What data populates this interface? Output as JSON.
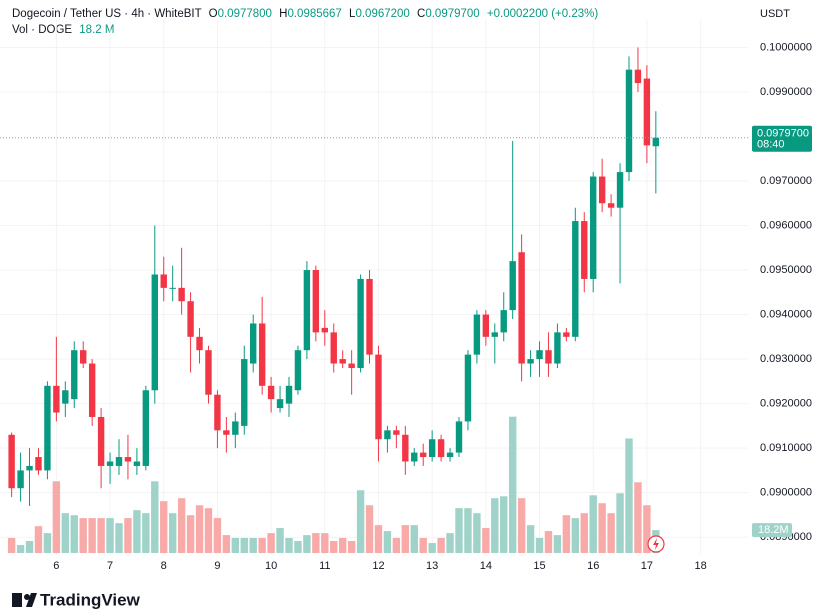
{
  "chart_data": {
    "type": "candlestick",
    "header": {
      "symbol": "Dogecoin / Tether US · 4h · WhiteBIT",
      "o_label": "O",
      "o": "0.0977800",
      "h_label": "H",
      "h": "0.0985667",
      "l_label": "L",
      "l": "0.0967200",
      "c_label": "C",
      "c": "0.0979700",
      "change": "+0.0002200 (+0.23%)",
      "vol_label": "Vol · DOGE",
      "vol": "18.2 M"
    },
    "currency": "USDT",
    "up_color": "#089981",
    "down_color": "#f23645",
    "up_volume_color": "#9fd3c9",
    "down_volume_color": "#f7aaa8",
    "grid": true,
    "xlim": [
      -1.3,
      82.3
    ],
    "xticks": [
      {
        "value": 5,
        "label": "6"
      },
      {
        "value": 11,
        "label": "7"
      },
      {
        "value": 17,
        "label": "8"
      },
      {
        "value": 23,
        "label": "9"
      },
      {
        "value": 29,
        "label": "10"
      },
      {
        "value": 35,
        "label": "11"
      },
      {
        "value": 41,
        "label": "12"
      },
      {
        "value": 47,
        "label": "13"
      },
      {
        "value": 53,
        "label": "14"
      },
      {
        "value": 59,
        "label": "15"
      },
      {
        "value": 65,
        "label": "16"
      },
      {
        "value": 71,
        "label": "17"
      },
      {
        "value": 77,
        "label": "18"
      }
    ],
    "ylim": [
      0.0886,
      0.1004
    ],
    "yticks": [
      {
        "value": 0.089,
        "label": "0.0890000"
      },
      {
        "value": 0.09,
        "label": "0.0900000"
      },
      {
        "value": 0.091,
        "label": "0.0910000"
      },
      {
        "value": 0.092,
        "label": "0.0920000"
      },
      {
        "value": 0.093,
        "label": "0.0930000"
      },
      {
        "value": 0.094,
        "label": "0.0940000"
      },
      {
        "value": 0.095,
        "label": "0.0950000"
      },
      {
        "value": 0.096,
        "label": "0.0960000"
      },
      {
        "value": 0.097,
        "label": "0.0970000"
      },
      {
        "value": 0.099,
        "label": "0.0990000"
      },
      {
        "value": 0.1,
        "label": "0.1000000"
      }
    ],
    "open": [
      0.0913,
      0.0901,
      0.0905,
      0.0908,
      0.0905,
      0.0924,
      0.092,
      0.0921,
      0.0932,
      0.0929,
      0.0917,
      0.0906,
      0.0906,
      0.0908,
      0.0906,
      0.0906,
      0.0923,
      0.0949,
      0.0946,
      0.0946,
      0.0943,
      0.0935,
      0.0932,
      0.0922,
      0.0914,
      0.0913,
      0.0915,
      0.0929,
      0.0938,
      0.0924,
      0.0919,
      0.092,
      0.0923,
      0.0932,
      0.095,
      0.0937,
      0.0936,
      0.093,
      0.0929,
      0.0928,
      0.0948,
      0.0931,
      0.0912,
      0.0914,
      0.0913,
      0.0907,
      0.0909,
      0.0908,
      0.0912,
      0.0908,
      0.0909,
      0.0916,
      0.0931,
      0.094,
      0.0935,
      0.0936,
      0.0941,
      0.0954,
      0.0929,
      0.093,
      0.0932,
      0.0929,
      0.0936,
      0.0935,
      0.0961,
      0.0948,
      0.0971,
      0.0965,
      0.0964,
      0.0972,
      0.0995,
      0.0993,
      0.09778
    ],
    "high": [
      0.09135,
      0.0909,
      0.091,
      0.091,
      0.0925,
      0.0935,
      0.0925,
      0.0934,
      0.0934,
      0.093,
      0.0919,
      0.0909,
      0.0912,
      0.0913,
      0.091,
      0.0924,
      0.096,
      0.0953,
      0.0951,
      0.0955,
      0.0945,
      0.0937,
      0.0933,
      0.0923,
      0.0917,
      0.0918,
      0.0933,
      0.094,
      0.0944,
      0.0926,
      0.0924,
      0.0926,
      0.0933,
      0.0952,
      0.0951,
      0.0941,
      0.0938,
      0.0932,
      0.0932,
      0.0949,
      0.095,
      0.0933,
      0.0915,
      0.0915,
      0.0915,
      0.091,
      0.0911,
      0.0914,
      0.0913,
      0.091,
      0.0917,
      0.0932,
      0.0941,
      0.0941,
      0.0938,
      0.0945,
      0.0979,
      0.0958,
      0.0932,
      0.0934,
      0.0936,
      0.0938,
      0.0937,
      0.0964,
      0.0963,
      0.0972,
      0.0975,
      0.0967,
      0.0974,
      0.0998,
      0.1,
      0.0996,
      0.0985667
    ],
    "low": [
      0.0899,
      0.0898,
      0.0897,
      0.0904,
      0.0903,
      0.0916,
      0.0917,
      0.0919,
      0.0928,
      0.0915,
      0.0901,
      0.0902,
      0.0904,
      0.0903,
      0.0904,
      0.0905,
      0.092,
      0.0943,
      0.0943,
      0.094,
      0.0927,
      0.0929,
      0.092,
      0.091,
      0.0909,
      0.091,
      0.0913,
      0.0927,
      0.0922,
      0.0918,
      0.0918,
      0.0917,
      0.0922,
      0.093,
      0.0934,
      0.0933,
      0.0927,
      0.0928,
      0.0922,
      0.0927,
      0.0929,
      0.0907,
      0.0909,
      0.091,
      0.0904,
      0.0906,
      0.0906,
      0.0907,
      0.0907,
      0.0907,
      0.0908,
      0.0914,
      0.0929,
      0.0933,
      0.0929,
      0.0934,
      0.0939,
      0.0925,
      0.0926,
      0.0926,
      0.0926,
      0.0928,
      0.0934,
      0.0934,
      0.0945,
      0.0945,
      0.0963,
      0.0962,
      0.0947,
      0.097,
      0.099,
      0.0974,
      0.09672
    ],
    "close": [
      0.0901,
      0.0905,
      0.0906,
      0.0905,
      0.0924,
      0.0918,
      0.0923,
      0.0932,
      0.0929,
      0.0917,
      0.0906,
      0.0907,
      0.0908,
      0.0907,
      0.0907,
      0.0923,
      0.0949,
      0.0946,
      0.0946,
      0.0943,
      0.0935,
      0.0932,
      0.0922,
      0.0914,
      0.0913,
      0.0916,
      0.093,
      0.0938,
      0.0924,
      0.0921,
      0.0921,
      0.0924,
      0.0932,
      0.095,
      0.0936,
      0.0936,
      0.0929,
      0.0929,
      0.0928,
      0.0948,
      0.0931,
      0.0912,
      0.0914,
      0.0913,
      0.0907,
      0.0909,
      0.0908,
      0.0912,
      0.0908,
      0.0909,
      0.0916,
      0.0931,
      0.094,
      0.0935,
      0.0936,
      0.0941,
      0.0952,
      0.0929,
      0.093,
      0.0932,
      0.0929,
      0.0936,
      0.0935,
      0.0961,
      0.0948,
      0.0971,
      0.0965,
      0.0964,
      0.0972,
      0.0995,
      0.0992,
      0.0978,
      0.09797
    ],
    "volume": [
      11.9,
      6.3,
      9.5,
      21.3,
      15.8,
      56.9,
      31.6,
      30.0,
      27.7,
      27.7,
      27.7,
      27.7,
      23.7,
      27.7,
      34.0,
      31.6,
      56.9,
      41.1,
      31.6,
      43.5,
      30.0,
      37.9,
      35.6,
      27.7,
      14.2,
      11.9,
      11.9,
      11.9,
      11.9,
      15.8,
      19.8,
      11.9,
      9.5,
      14.2,
      15.8,
      15.8,
      9.5,
      11.9,
      9.5,
      49.8,
      37.9,
      22.1,
      17.4,
      11.9,
      22.1,
      22.1,
      11.9,
      7.9,
      11.9,
      15.8,
      35.6,
      35.6,
      31.6,
      19.8,
      43.5,
      45.0,
      108.2,
      43.5,
      22.1,
      11.9,
      17.4,
      14.2,
      30.0,
      27.7,
      31.6,
      45.8,
      39.5,
      31.6,
      47.4,
      90.9,
      56.1,
      37.9,
      18.2
    ],
    "last_price": {
      "value": 0.09797,
      "label": "0.0979700",
      "countdown": "08:40"
    },
    "last_volume_label": "18.2M"
  },
  "brand": "TradingView"
}
